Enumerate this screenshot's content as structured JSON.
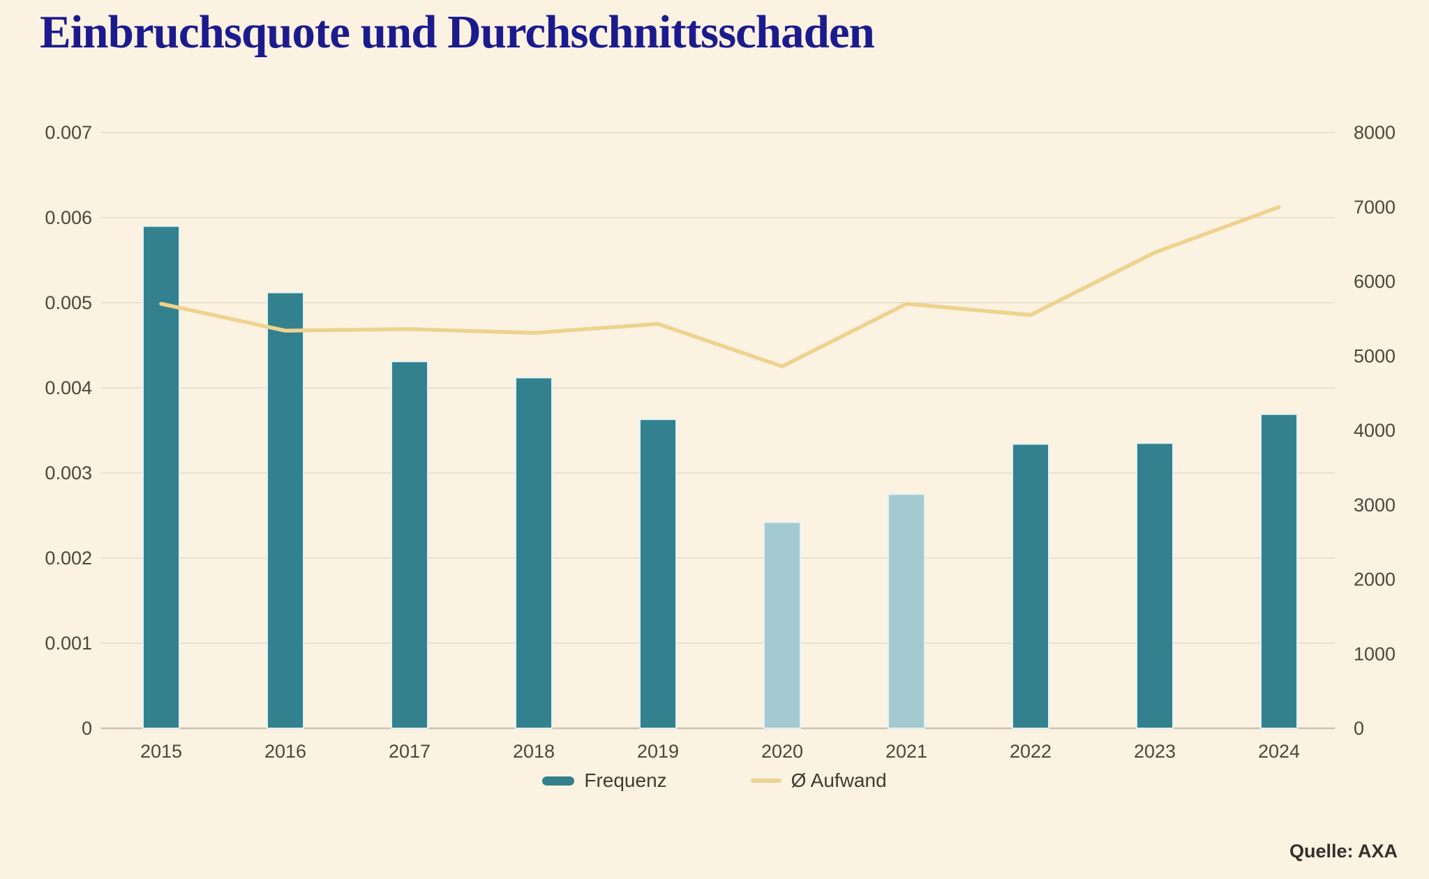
{
  "title": "Einbruchsquote und Durchschnittsschaden",
  "legend": {
    "frequenz": "Frequenz",
    "aufwand": "Ø Aufwand"
  },
  "source": "Quelle: AXA",
  "colors": {
    "background": "#fcf2e1",
    "bar": "#33818e",
    "bar_muted": "#a3c9d1",
    "bar_edge": "#dff2f4",
    "line": "#edd38f",
    "grid": "#e6e1d3",
    "axis": "#c8c3b5",
    "tick_text": "#4b473e",
    "title_text": "#1b1b8e",
    "legend_text": "#3e3b34",
    "source_text": "#32302b"
  },
  "chart_data": {
    "type": "bar",
    "subtype": "bar+line combo, dual axis",
    "categories": [
      "2015",
      "2016",
      "2017",
      "2018",
      "2019",
      "2020",
      "2021",
      "2022",
      "2023",
      "2024"
    ],
    "series": [
      {
        "name": "Frequenz",
        "type": "bar",
        "axis": "left",
        "values": [
          0.0059,
          0.00512,
          0.00431,
          0.00412,
          0.00363,
          0.00242,
          0.00275,
          0.00334,
          0.00335,
          0.00369
        ]
      },
      {
        "name": "Ø Aufwand",
        "type": "line",
        "axis": "right",
        "values": [
          5700,
          5340,
          5360,
          5310,
          5430,
          4860,
          5700,
          5550,
          6390,
          7000
        ]
      }
    ],
    "muted_category_indices": [
      5,
      6
    ],
    "left_axis": {
      "min": 0,
      "max": 0.007,
      "ticks": [
        "0.007",
        "0.006",
        "0.005",
        "0.004",
        "0.003",
        "0.002",
        "0.001",
        "0"
      ]
    },
    "right_axis": {
      "min": 0,
      "max": 8000,
      "ticks": [
        "8000",
        "7000",
        "6000",
        "5000",
        "4000",
        "3000",
        "2000",
        "1000",
        "0"
      ]
    },
    "grid": true,
    "legend_position": "bottom"
  }
}
